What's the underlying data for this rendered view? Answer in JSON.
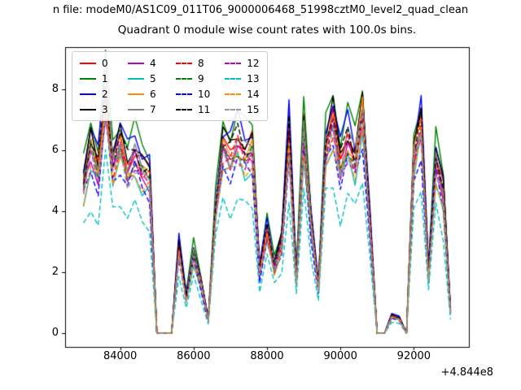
{
  "figure": {
    "file_line": "n file: modeM0/AS1C09_011T06_9000006468_51998cztM0_level2_quad_clean",
    "title": "Quadrant 0 module wise count rates with 100.0s bins."
  },
  "chart_data": {
    "type": "line",
    "title": "Quadrant 0 module wise count rates with 100.0s bins.",
    "subtitle": "n file: modeM0/AS1C09_011T06_9000006468_51998cztM0_level2_quad_clean",
    "xlabel": "",
    "ylabel": "",
    "x_offset_label": "+4.844e8",
    "grid": false,
    "legend": {
      "location": "upper left",
      "ncol": 4,
      "labels": [
        "0",
        "1",
        "2",
        "3",
        "4",
        "5",
        "6",
        "7",
        "8",
        "9",
        "10",
        "11",
        "12",
        "13",
        "14",
        "15"
      ]
    },
    "xlim": [
      82500,
      93500
    ],
    "ylim": [
      -0.45,
      9.4
    ],
    "xticks": [
      {
        "label": "84000",
        "value": 84000
      },
      {
        "label": "86000",
        "value": 86000
      },
      {
        "label": "88000",
        "value": 88000
      },
      {
        "label": "90000",
        "value": 90000
      },
      {
        "label": "92000",
        "value": 92000
      }
    ],
    "yticks": [
      {
        "label": "0",
        "value": 0
      },
      {
        "label": "2",
        "value": 2
      },
      {
        "label": "4",
        "value": 4
      },
      {
        "label": "6",
        "value": 6
      },
      {
        "label": "8",
        "value": 8
      }
    ],
    "x": [
      83000,
      83200,
      83400,
      83600,
      83800,
      84000,
      84200,
      84400,
      84600,
      84800,
      85000,
      85200,
      85400,
      85600,
      85800,
      86000,
      86200,
      86400,
      86600,
      86800,
      87000,
      87200,
      87400,
      87600,
      87800,
      88000,
      88200,
      88400,
      88600,
      88800,
      89000,
      89200,
      89400,
      89600,
      89800,
      90000,
      90200,
      90400,
      90600,
      90800,
      91000,
      91200,
      91400,
      91600,
      91800,
      92000,
      92200,
      92400,
      92600,
      92800,
      93000
    ],
    "base_values": [
      5.6,
      7.0,
      6.1,
      9.0,
      6.3,
      7.1,
      6.2,
      6.7,
      6.1,
      5.9,
      0,
      0,
      0,
      3.2,
      1.3,
      3.0,
      1.9,
      0.5,
      4.7,
      7.0,
      6.6,
      7.2,
      6.7,
      6.9,
      2.3,
      3.9,
      2.5,
      3.4,
      7.4,
      2.0,
      7.6,
      4.2,
      1.7,
      7.0,
      7.9,
      6.3,
      7.3,
      6.5,
      8.3,
      4.2,
      0,
      0,
      0.65,
      0.55,
      0,
      6.6,
      7.9,
      2.2,
      6.5,
      5.3,
      0.8
    ],
    "noise_amp": 0.35,
    "series": [
      {
        "name": "0",
        "color": "#ff0000",
        "linestyle": "solid",
        "scale": 0.9
      },
      {
        "name": "1",
        "color": "#008000",
        "linestyle": "solid",
        "scale": 1.0
      },
      {
        "name": "2",
        "color": "#0000ff",
        "linestyle": "solid",
        "scale": 0.97
      },
      {
        "name": "3",
        "color": "#000000",
        "linestyle": "solid",
        "scale": 0.92
      },
      {
        "name": "4",
        "color": "#bf00bf",
        "linestyle": "solid",
        "scale": 0.85
      },
      {
        "name": "5",
        "color": "#00bfbf",
        "linestyle": "solid",
        "scale": 0.8
      },
      {
        "name": "6",
        "color": "#ff8c00",
        "linestyle": "solid",
        "scale": 0.87
      },
      {
        "name": "7",
        "color": "#808080",
        "linestyle": "solid",
        "scale": 0.89
      },
      {
        "name": "8",
        "color": "#ff0000",
        "linestyle": "dashed",
        "scale": 0.86
      },
      {
        "name": "9",
        "color": "#008000",
        "linestyle": "dashed",
        "scale": 0.84
      },
      {
        "name": "10",
        "color": "#0000ff",
        "linestyle": "dashed",
        "scale": 0.78
      },
      {
        "name": "11",
        "color": "#000000",
        "linestyle": "dashed",
        "scale": 0.91
      },
      {
        "name": "12",
        "color": "#bf00bf",
        "linestyle": "dashed",
        "scale": 0.83
      },
      {
        "name": "13",
        "color": "#00bfbf",
        "linestyle": "dashed",
        "scale": 0.62
      },
      {
        "name": "14",
        "color": "#ff8c00",
        "linestyle": "dashed",
        "scale": 0.81
      },
      {
        "name": "15",
        "color": "#999999",
        "linestyle": "dashed",
        "scale": 0.82
      }
    ]
  }
}
